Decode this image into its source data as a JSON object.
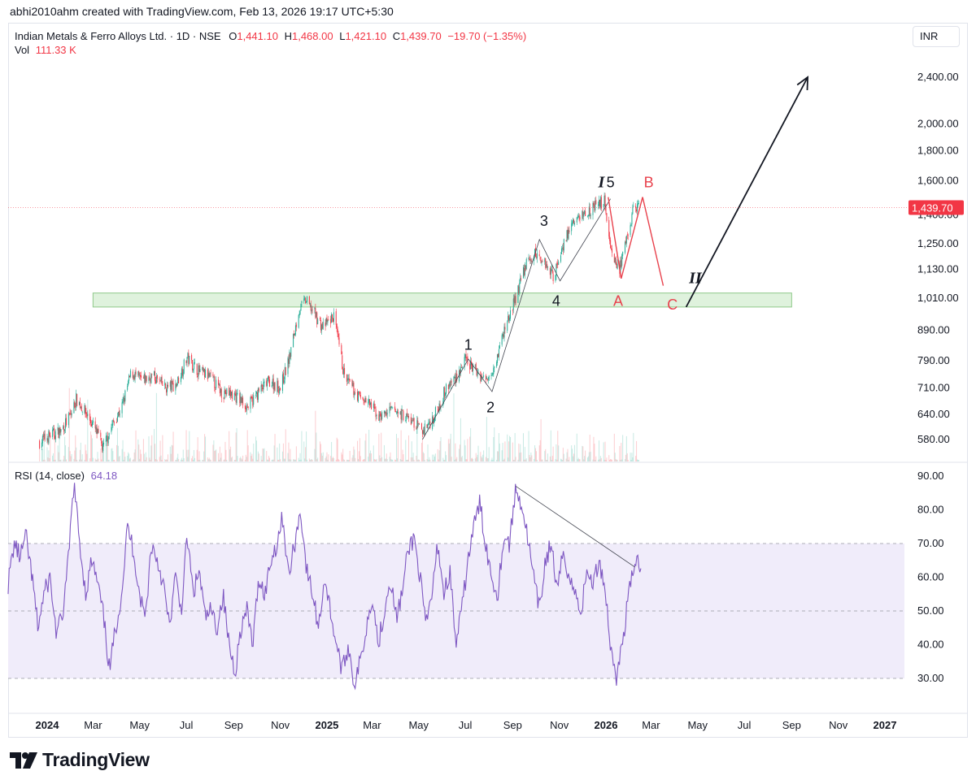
{
  "header": {
    "created_by": "abhi2010ahm created with TradingView.com, Feb 13, 2026 19:17 UTC+5:30"
  },
  "legend": {
    "symbol": "Indian Metals & Ferro Alloys Ltd. · 1D · NSE",
    "open_label": "O",
    "open": "1,441.10",
    "high_label": "H",
    "high": "1,468.00",
    "low_label": "L",
    "low": "1,421.10",
    "close_label": "C",
    "close": "1,439.70",
    "change": "−19.70 (−1.35%)",
    "vol_label": "Vol",
    "vol": "111.33 K"
  },
  "currency": "INR",
  "last_price_tag": "1,439.70",
  "rsi": {
    "label": "RSI (14, close)",
    "value": "64.18",
    "upper_band": 70,
    "middle_band": 50,
    "lower_band": 30
  },
  "brand": "TradingView",
  "colors": {
    "up": "#22ab94",
    "down": "#f23645",
    "rsi_line": "#7e57c2",
    "rsi_band_fill": "#f0ecfa",
    "support_zone_fill": "#dff2dd",
    "support_zone_border": "#8fc98a",
    "correction_wave": "#e8414c",
    "impulse_wave": "#131722"
  },
  "chart_data": [
    {
      "type": "candlestick",
      "title": "",
      "y_scale": "log",
      "x_tick_labels": [
        "2024",
        "Mar",
        "May",
        "Jul",
        "Sep",
        "Nov",
        "2025",
        "Mar",
        "May",
        "Jul",
        "Sep",
        "Nov",
        "2026",
        "Mar",
        "May",
        "Jul",
        "Sep",
        "Nov",
        "2027"
      ],
      "y_tick_labels": [
        "2,400.00",
        "2,000.00",
        "1,800.00",
        "1,600.00",
        "1,400.00",
        "1,250.00",
        "1,130.00",
        "1,010.00",
        "890.00",
        "790.00",
        "710.00",
        "640.00",
        "580.00"
      ],
      "ylim": [
        540,
        2600
      ],
      "close_series": {
        "name": "",
        "points": [
          [
            "2023-12-22",
            575
          ],
          [
            "2024-01-05",
            590
          ],
          [
            "2024-01-19",
            600
          ],
          [
            "2024-02-01",
            640
          ],
          [
            "2024-02-08",
            680
          ],
          [
            "2024-02-15",
            660
          ],
          [
            "2024-02-22",
            640
          ],
          [
            "2024-03-05",
            600
          ],
          [
            "2024-03-14",
            560
          ],
          [
            "2024-03-25",
            610
          ],
          [
            "2024-04-08",
            660
          ],
          [
            "2024-04-20",
            755
          ],
          [
            "2024-05-04",
            730
          ],
          [
            "2024-05-18",
            745
          ],
          [
            "2024-06-04",
            710
          ],
          [
            "2024-06-18",
            720
          ],
          [
            "2024-07-02",
            800
          ],
          [
            "2024-07-16",
            760
          ],
          [
            "2024-08-01",
            740
          ],
          [
            "2024-08-16",
            700
          ],
          [
            "2024-09-02",
            690
          ],
          [
            "2024-09-20",
            660
          ],
          [
            "2024-10-04",
            700
          ],
          [
            "2024-10-18",
            730
          ],
          [
            "2024-11-01",
            710
          ],
          [
            "2024-11-13",
            800
          ],
          [
            "2024-11-25",
            960
          ],
          [
            "2024-12-04",
            1000
          ],
          [
            "2024-12-14",
            960
          ],
          [
            "2024-12-26",
            900
          ],
          [
            "2025-01-10",
            940
          ],
          [
            "2025-01-24",
            740
          ],
          [
            "2025-02-10",
            690
          ],
          [
            "2025-02-24",
            670
          ],
          [
            "2025-03-10",
            635
          ],
          [
            "2025-03-28",
            650
          ],
          [
            "2025-04-10",
            640
          ],
          [
            "2025-04-24",
            620
          ],
          [
            "2025-05-06",
            600
          ],
          [
            "2025-05-20",
            630
          ],
          [
            "2025-06-04",
            700
          ],
          [
            "2025-06-18",
            740
          ],
          [
            "2025-07-01",
            790
          ],
          [
            "2025-07-15",
            760
          ],
          [
            "2025-07-28",
            730
          ],
          [
            "2025-08-10",
            790
          ],
          [
            "2025-08-22",
            900
          ],
          [
            "2025-09-05",
            1010
          ],
          [
            "2025-09-18",
            1150
          ],
          [
            "2025-10-01",
            1200
          ],
          [
            "2025-10-14",
            1160
          ],
          [
            "2025-10-25",
            1100
          ],
          [
            "2025-11-05",
            1240
          ],
          [
            "2025-11-18",
            1350
          ],
          [
            "2025-12-01",
            1400
          ],
          [
            "2025-12-15",
            1440
          ],
          [
            "2025-12-30",
            1480
          ],
          [
            "2026-01-08",
            1220
          ],
          [
            "2026-01-18",
            1120
          ],
          [
            "2026-01-28",
            1260
          ],
          [
            "2026-02-06",
            1440
          ],
          [
            "2026-02-13",
            1440
          ]
        ]
      },
      "support_zone": {
        "from": "2024-03-01",
        "to": "2026-09-01",
        "low": 975,
        "high": 1030
      },
      "wave_labels": [
        {
          "text": "1",
          "date": "2025-07-05",
          "price": 825
        },
        {
          "text": "2",
          "date": "2025-08-03",
          "price": 645
        },
        {
          "text": "3",
          "date": "2025-10-12",
          "price": 1340
        },
        {
          "text": "4",
          "date": "2025-10-28",
          "price": 980
        },
        {
          "text": "5",
          "date": "2026-01-07",
          "price": 1560
        },
        {
          "text": "I",
          "date": "2025-12-26",
          "price": 1560
        },
        {
          "text": "A",
          "date": "2026-01-17",
          "price": 980
        },
        {
          "text": "B",
          "date": "2026-02-26",
          "price": 1560
        },
        {
          "text": "C",
          "date": "2026-03-29",
          "price": 965
        },
        {
          "text": "II",
          "date": "2026-04-28",
          "price": 1070
        }
      ]
    },
    {
      "type": "line",
      "title": "",
      "y_tick_labels": [
        "90.00",
        "80.00",
        "70.00",
        "60.00",
        "50.00",
        "40.00",
        "30.00"
      ],
      "ylim": [
        25,
        95
      ],
      "series": [
        {
          "name": "",
          "values": [
            58,
            70,
            66,
            72,
            60,
            45,
            55,
            60,
            44,
            47,
            63,
            88,
            70,
            55,
            65,
            58,
            48,
            32,
            45,
            55,
            75,
            68,
            55,
            48,
            70,
            65,
            58,
            45,
            60,
            50,
            72,
            55,
            62,
            48,
            50,
            45,
            55,
            40,
            32,
            45,
            50,
            40,
            60,
            55,
            65,
            70,
            78,
            60,
            70,
            80,
            62,
            55,
            45,
            60,
            50,
            40,
            32,
            40,
            28,
            35,
            45,
            55,
            40,
            50,
            60,
            48,
            55,
            68,
            72,
            60,
            45,
            55,
            70,
            55,
            62,
            40,
            50,
            65,
            75,
            82,
            70,
            60,
            55,
            72,
            70,
            86,
            82,
            72,
            60,
            50,
            65,
            70,
            55,
            68,
            60,
            55,
            50,
            62,
            58,
            65,
            57,
            38,
            30,
            42,
            55,
            65,
            64
          ]
        }
      ],
      "trendline": {
        "from": {
          "date": "2025-09-05",
          "value": 87
        },
        "to": {
          "date": "2026-02-08",
          "value": 63
        }
      }
    }
  ]
}
